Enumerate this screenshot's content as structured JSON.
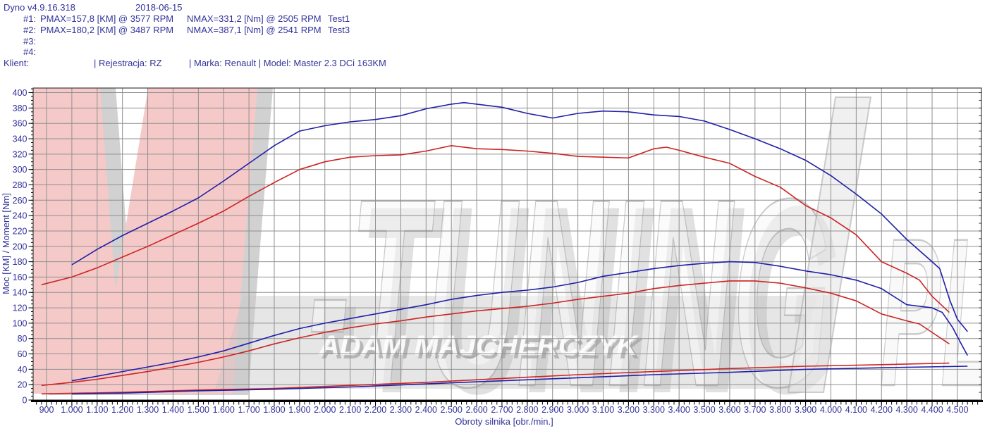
{
  "header": {
    "app": "Dyno v4.9.16.318",
    "date": "2018-06-15",
    "runs": [
      {
        "label": "#1:",
        "pmax": "PMAX=157,8 [KM] @ 3577 RPM",
        "nmax": "NMAX=331,2 [Nm] @ 2505 RPM",
        "test": "Test1"
      },
      {
        "label": "#2:",
        "pmax": "PMAX=180,2 [KM] @ 3487 RPM",
        "nmax": "NMAX=387,1 [Nm] @ 2541 RPM",
        "test": "Test3"
      },
      {
        "label": "#3:",
        "pmax": "",
        "nmax": "",
        "test": ""
      },
      {
        "label": "#4:",
        "pmax": "",
        "nmax": "",
        "test": ""
      }
    ],
    "client_row": {
      "klient": "Klient:",
      "rejestracja": "| Rejestracja: RZ",
      "marka_model": "| Marka: Renault | Model: Master 2.3 DCi 163KM"
    }
  },
  "watermark": {
    "brand_v": "V",
    "brand_tuning": "-TUNING",
    "brand_pl": "PL",
    "author": "ADAM MAJCHERCZYK"
  },
  "colors": {
    "text": "#32329b",
    "curve_blue": "#1f1fa8",
    "curve_red": "#cc2424",
    "grid": "#8f8f8f",
    "axis": "#000000",
    "watermark_pink": "#f6c9c9",
    "watermark_shadow": "#c9c9c9"
  },
  "chart_data": {
    "type": "line",
    "title": "",
    "xlabel": "Obroty silnika [obr./min.]",
    "ylabel": "Moc [KM] / Moment [Nm]",
    "xlim": [
      847,
      4595
    ],
    "ylim": [
      0,
      406
    ],
    "grid": true,
    "x_ticks": {
      "values": [
        900,
        1000,
        1100,
        1200,
        1300,
        1400,
        1500,
        1600,
        1700,
        1800,
        1900,
        2000,
        2100,
        2200,
        2300,
        2400,
        2500,
        2600,
        2700,
        2800,
        2900,
        3000,
        3100,
        3200,
        3300,
        3400,
        3500,
        3600,
        3700,
        3800,
        3900,
        4000,
        4100,
        4200,
        4300,
        4400,
        4500
      ],
      "labels": [
        "900",
        "1.000",
        "1.100",
        "1.200",
        "1.300",
        "1.400",
        "1.500",
        "1.600",
        "1.700",
        "1.800",
        "1.900",
        "2.000",
        "2.100",
        "2.200",
        "2.300",
        "2.400",
        "2.500",
        "2.600",
        "2.700",
        "2.800",
        "2.900",
        "3.000",
        "3.100",
        "3.200",
        "3.300",
        "3.400",
        "3.500",
        "3.600",
        "3.700",
        "3.800",
        "3.900",
        "4.000",
        "4.100",
        "4.200",
        "4.300",
        "4.400",
        "4.500"
      ]
    },
    "y_ticks": {
      "values": [
        0,
        20,
        40,
        60,
        80,
        100,
        120,
        140,
        160,
        180,
        200,
        220,
        240,
        260,
        280,
        300,
        320,
        340,
        360,
        380,
        400
      ],
      "labels": [
        "0",
        "20",
        "40",
        "60",
        "80",
        "100",
        "120",
        "140",
        "160",
        "180",
        "200",
        "220",
        "240",
        "260",
        "280",
        "300",
        "320",
        "340",
        "360",
        "380",
        "400"
      ]
    },
    "series": [
      {
        "id": "torque-test1-red",
        "unit": "Nm",
        "color": "#cc2424",
        "points": [
          [
            880,
            150
          ],
          [
            1000,
            160
          ],
          [
            1100,
            172
          ],
          [
            1200,
            186
          ],
          [
            1300,
            200
          ],
          [
            1400,
            215
          ],
          [
            1500,
            230
          ],
          [
            1600,
            246
          ],
          [
            1700,
            265
          ],
          [
            1800,
            283
          ],
          [
            1900,
            300
          ],
          [
            2000,
            310
          ],
          [
            2100,
            316
          ],
          [
            2200,
            318
          ],
          [
            2300,
            319
          ],
          [
            2400,
            324
          ],
          [
            2500,
            331
          ],
          [
            2600,
            327
          ],
          [
            2700,
            326
          ],
          [
            2800,
            324
          ],
          [
            2900,
            321
          ],
          [
            3000,
            317
          ],
          [
            3100,
            316
          ],
          [
            3200,
            315
          ],
          [
            3300,
            327
          ],
          [
            3350,
            329
          ],
          [
            3400,
            325
          ],
          [
            3500,
            316
          ],
          [
            3600,
            308
          ],
          [
            3700,
            291
          ],
          [
            3800,
            277
          ],
          [
            3900,
            253
          ],
          [
            4000,
            237
          ],
          [
            4100,
            215
          ],
          [
            4200,
            180
          ],
          [
            4300,
            165
          ],
          [
            4350,
            156
          ],
          [
            4400,
            135
          ],
          [
            4468,
            114
          ]
        ]
      },
      {
        "id": "torque-test3-blue",
        "unit": "Nm",
        "color": "#1f1fa8",
        "points": [
          [
            1000,
            176
          ],
          [
            1100,
            196
          ],
          [
            1200,
            214
          ],
          [
            1300,
            230
          ],
          [
            1400,
            246
          ],
          [
            1500,
            263
          ],
          [
            1600,
            285
          ],
          [
            1700,
            308
          ],
          [
            1800,
            331
          ],
          [
            1900,
            350
          ],
          [
            2000,
            357
          ],
          [
            2100,
            362
          ],
          [
            2200,
            365
          ],
          [
            2300,
            370
          ],
          [
            2400,
            379
          ],
          [
            2500,
            385
          ],
          [
            2550,
            387
          ],
          [
            2600,
            385
          ],
          [
            2700,
            381
          ],
          [
            2800,
            373
          ],
          [
            2900,
            367
          ],
          [
            3000,
            373
          ],
          [
            3100,
            376
          ],
          [
            3200,
            375
          ],
          [
            3300,
            371
          ],
          [
            3400,
            369
          ],
          [
            3500,
            363
          ],
          [
            3600,
            352
          ],
          [
            3700,
            340
          ],
          [
            3800,
            327
          ],
          [
            3900,
            312
          ],
          [
            4000,
            292
          ],
          [
            4100,
            268
          ],
          [
            4200,
            242
          ],
          [
            4300,
            209
          ],
          [
            4400,
            180
          ],
          [
            4430,
            171
          ],
          [
            4470,
            130
          ],
          [
            4500,
            105
          ],
          [
            4540,
            89
          ]
        ]
      },
      {
        "id": "power-test1-red",
        "unit": "KM",
        "color": "#cc2424",
        "points": [
          [
            880,
            19
          ],
          [
            1000,
            23
          ],
          [
            1100,
            27
          ],
          [
            1200,
            32
          ],
          [
            1300,
            37
          ],
          [
            1400,
            43
          ],
          [
            1500,
            49
          ],
          [
            1600,
            56
          ],
          [
            1700,
            64
          ],
          [
            1800,
            73
          ],
          [
            1900,
            81
          ],
          [
            2000,
            88
          ],
          [
            2100,
            94
          ],
          [
            2200,
            99
          ],
          [
            2300,
            103
          ],
          [
            2400,
            108
          ],
          [
            2500,
            112
          ],
          [
            2600,
            116
          ],
          [
            2700,
            119
          ],
          [
            2800,
            122
          ],
          [
            2900,
            126
          ],
          [
            3000,
            131
          ],
          [
            3100,
            135
          ],
          [
            3200,
            139
          ],
          [
            3300,
            145
          ],
          [
            3400,
            149
          ],
          [
            3500,
            152
          ],
          [
            3600,
            155
          ],
          [
            3700,
            155
          ],
          [
            3800,
            152
          ],
          [
            3900,
            146
          ],
          [
            4000,
            139
          ],
          [
            4100,
            129
          ],
          [
            4200,
            112
          ],
          [
            4300,
            103
          ],
          [
            4350,
            99
          ],
          [
            4400,
            88
          ],
          [
            4468,
            73
          ]
        ]
      },
      {
        "id": "power-test3-blue",
        "unit": "KM",
        "color": "#1f1fa8",
        "points": [
          [
            1000,
            25
          ],
          [
            1100,
            31
          ],
          [
            1200,
            37
          ],
          [
            1300,
            43
          ],
          [
            1400,
            49
          ],
          [
            1500,
            56
          ],
          [
            1600,
            64
          ],
          [
            1700,
            74
          ],
          [
            1800,
            84
          ],
          [
            1900,
            93
          ],
          [
            2000,
            100
          ],
          [
            2100,
            106
          ],
          [
            2200,
            112
          ],
          [
            2300,
            118
          ],
          [
            2400,
            124
          ],
          [
            2500,
            131
          ],
          [
            2600,
            136
          ],
          [
            2700,
            140
          ],
          [
            2800,
            143
          ],
          [
            2900,
            147
          ],
          [
            3000,
            153
          ],
          [
            3100,
            161
          ],
          [
            3200,
            166
          ],
          [
            3300,
            171
          ],
          [
            3400,
            175
          ],
          [
            3500,
            178
          ],
          [
            3600,
            180
          ],
          [
            3700,
            179
          ],
          [
            3800,
            174
          ],
          [
            3900,
            168
          ],
          [
            4000,
            163
          ],
          [
            4100,
            156
          ],
          [
            4200,
            145
          ],
          [
            4300,
            124
          ],
          [
            4400,
            120
          ],
          [
            4440,
            114
          ],
          [
            4480,
            95
          ],
          [
            4520,
            70
          ],
          [
            4540,
            58
          ]
        ]
      },
      {
        "id": "loss-test1-red",
        "unit": "KM",
        "color": "#cc2424",
        "points": [
          [
            880,
            8
          ],
          [
            1200,
            10
          ],
          [
            1500,
            13
          ],
          [
            1800,
            15
          ],
          [
            2100,
            19
          ],
          [
            2400,
            23
          ],
          [
            2700,
            28
          ],
          [
            3000,
            33
          ],
          [
            3300,
            37
          ],
          [
            3600,
            41
          ],
          [
            3900,
            44
          ],
          [
            4200,
            46
          ],
          [
            4468,
            48
          ]
        ]
      },
      {
        "id": "loss-test3-blue",
        "unit": "KM",
        "color": "#1f1fa8",
        "points": [
          [
            1000,
            8
          ],
          [
            1200,
            9
          ],
          [
            1500,
            12
          ],
          [
            1800,
            14
          ],
          [
            2100,
            17
          ],
          [
            2400,
            21
          ],
          [
            2700,
            25
          ],
          [
            3000,
            29
          ],
          [
            3300,
            33
          ],
          [
            3600,
            36
          ],
          [
            3900,
            40
          ],
          [
            4200,
            42
          ],
          [
            4540,
            44
          ]
        ]
      }
    ]
  }
}
